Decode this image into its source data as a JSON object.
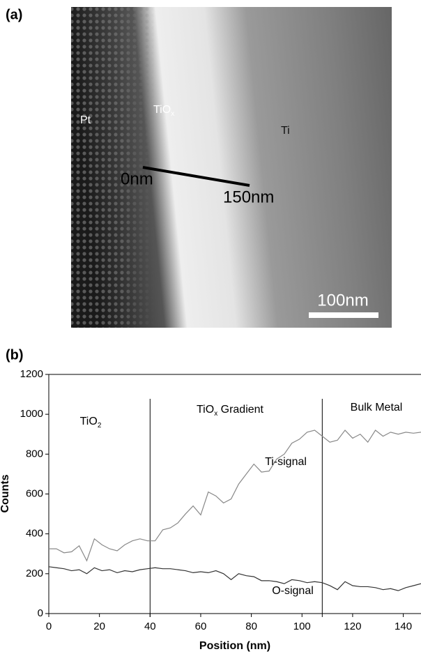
{
  "panel_a": {
    "label": "(a)",
    "region_pt": "Pt",
    "region_tiox": {
      "text": "TiO",
      "sub": "x"
    },
    "region_ti": "Ti",
    "line_start": "0nm",
    "line_end": "150nm",
    "scale_bar": "100nm"
  },
  "chart_data": {
    "type": "line",
    "panel_label": "(b)",
    "x_label": "Position (nm)",
    "y_label": "Counts",
    "x": [
      0,
      3,
      6,
      9,
      12,
      15,
      18,
      21,
      24,
      27,
      30,
      33,
      36,
      39,
      42,
      45,
      48,
      51,
      54,
      57,
      60,
      63,
      66,
      69,
      72,
      75,
      78,
      81,
      84,
      87,
      90,
      93,
      96,
      99,
      102,
      105,
      108,
      111,
      114,
      117,
      120,
      123,
      126,
      129,
      132,
      135,
      138,
      141,
      144,
      147
    ],
    "series": [
      {
        "name": "Ti-signal",
        "color": "#888888",
        "values": [
          325,
          325,
          305,
          310,
          340,
          265,
          375,
          345,
          325,
          315,
          345,
          365,
          375,
          365,
          365,
          420,
          430,
          455,
          500,
          540,
          495,
          610,
          590,
          555,
          575,
          650,
          700,
          750,
          710,
          715,
          775,
          800,
          855,
          875,
          910,
          920,
          890,
          860,
          870,
          920,
          880,
          900,
          860,
          920,
          890,
          910,
          900,
          910,
          905,
          910
        ]
      },
      {
        "name": "O-signal",
        "color": "#333333",
        "values": [
          235,
          230,
          225,
          215,
          220,
          200,
          230,
          215,
          220,
          205,
          215,
          210,
          220,
          225,
          230,
          225,
          225,
          220,
          215,
          205,
          210,
          205,
          215,
          200,
          170,
          200,
          190,
          185,
          165,
          165,
          160,
          150,
          170,
          165,
          155,
          160,
          155,
          140,
          120,
          160,
          140,
          135,
          135,
          130,
          120,
          125,
          115,
          130,
          140,
          150
        ]
      }
    ],
    "vlines": [
      40,
      108
    ],
    "region_labels": [
      {
        "text": "TiO",
        "sub": "2"
      },
      {
        "text": "TiO",
        "sub": "x",
        "after": " Gradient"
      },
      {
        "text": "Bulk Metal"
      }
    ],
    "xlim": [
      0,
      147
    ],
    "xticks": [
      0,
      20,
      40,
      60,
      80,
      100,
      120,
      140
    ],
    "ylim": [
      0,
      1200
    ],
    "yticks": [
      0,
      200,
      400,
      600,
      800,
      1000,
      1200
    ]
  }
}
